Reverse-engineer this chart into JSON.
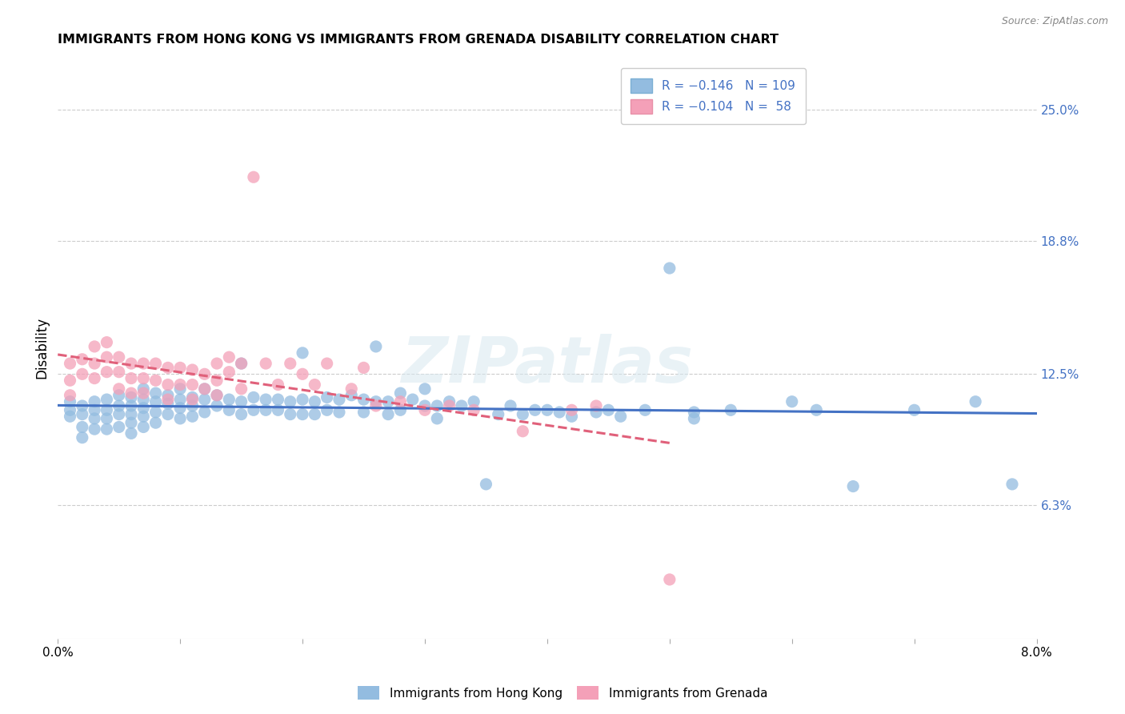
{
  "title": "IMMIGRANTS FROM HONG KONG VS IMMIGRANTS FROM GRENADA DISABILITY CORRELATION CHART",
  "source": "Source: ZipAtlas.com",
  "ylabel": "Disability",
  "ytick_labels": [
    "25.0%",
    "18.8%",
    "12.5%",
    "6.3%"
  ],
  "ytick_values": [
    0.25,
    0.188,
    0.125,
    0.063
  ],
  "x_range": [
    0.0,
    0.08
  ],
  "y_range": [
    0.0,
    0.275
  ],
  "legend_bottom": [
    "Immigrants from Hong Kong",
    "Immigrants from Grenada"
  ],
  "hk_color": "#93bce0",
  "gr_color": "#f4a0b8",
  "hk_line_color": "#4472c4",
  "gr_line_color": "#e0607a",
  "watermark": "ZIPatlas",
  "hk_scatter_x": [
    0.001,
    0.001,
    0.001,
    0.002,
    0.002,
    0.002,
    0.002,
    0.003,
    0.003,
    0.003,
    0.003,
    0.004,
    0.004,
    0.004,
    0.004,
    0.005,
    0.005,
    0.005,
    0.005,
    0.006,
    0.006,
    0.006,
    0.006,
    0.006,
    0.007,
    0.007,
    0.007,
    0.007,
    0.007,
    0.008,
    0.008,
    0.008,
    0.008,
    0.009,
    0.009,
    0.009,
    0.01,
    0.01,
    0.01,
    0.01,
    0.011,
    0.011,
    0.011,
    0.012,
    0.012,
    0.012,
    0.013,
    0.013,
    0.014,
    0.014,
    0.015,
    0.015,
    0.015,
    0.016,
    0.016,
    0.017,
    0.017,
    0.018,
    0.018,
    0.019,
    0.019,
    0.02,
    0.02,
    0.02,
    0.021,
    0.021,
    0.022,
    0.022,
    0.023,
    0.023,
    0.024,
    0.025,
    0.025,
    0.026,
    0.026,
    0.027,
    0.027,
    0.028,
    0.028,
    0.029,
    0.03,
    0.03,
    0.031,
    0.031,
    0.032,
    0.033,
    0.034,
    0.035,
    0.036,
    0.037,
    0.038,
    0.039,
    0.04,
    0.041,
    0.042,
    0.044,
    0.045,
    0.046,
    0.048,
    0.05,
    0.052,
    0.052,
    0.055,
    0.06,
    0.062,
    0.065,
    0.07,
    0.075,
    0.078
  ],
  "hk_scatter_y": [
    0.108,
    0.112,
    0.105,
    0.11,
    0.106,
    0.1,
    0.095,
    0.112,
    0.108,
    0.104,
    0.099,
    0.113,
    0.108,
    0.104,
    0.099,
    0.115,
    0.11,
    0.106,
    0.1,
    0.114,
    0.11,
    0.106,
    0.102,
    0.097,
    0.118,
    0.113,
    0.109,
    0.105,
    0.1,
    0.116,
    0.112,
    0.107,
    0.102,
    0.115,
    0.111,
    0.106,
    0.118,
    0.113,
    0.109,
    0.104,
    0.114,
    0.11,
    0.105,
    0.118,
    0.113,
    0.107,
    0.115,
    0.11,
    0.113,
    0.108,
    0.13,
    0.112,
    0.106,
    0.114,
    0.108,
    0.113,
    0.108,
    0.113,
    0.108,
    0.112,
    0.106,
    0.135,
    0.113,
    0.106,
    0.112,
    0.106,
    0.114,
    0.108,
    0.113,
    0.107,
    0.115,
    0.113,
    0.107,
    0.138,
    0.112,
    0.112,
    0.106,
    0.116,
    0.108,
    0.113,
    0.118,
    0.11,
    0.11,
    0.104,
    0.112,
    0.11,
    0.112,
    0.073,
    0.106,
    0.11,
    0.106,
    0.108,
    0.108,
    0.107,
    0.105,
    0.107,
    0.108,
    0.105,
    0.108,
    0.175,
    0.107,
    0.104,
    0.108,
    0.112,
    0.108,
    0.072,
    0.108,
    0.112,
    0.073
  ],
  "gr_scatter_x": [
    0.001,
    0.001,
    0.001,
    0.002,
    0.002,
    0.003,
    0.003,
    0.003,
    0.004,
    0.004,
    0.004,
    0.005,
    0.005,
    0.005,
    0.006,
    0.006,
    0.006,
    0.007,
    0.007,
    0.007,
    0.008,
    0.008,
    0.009,
    0.009,
    0.009,
    0.01,
    0.01,
    0.011,
    0.011,
    0.011,
    0.012,
    0.012,
    0.013,
    0.013,
    0.013,
    0.014,
    0.014,
    0.015,
    0.015,
    0.016,
    0.017,
    0.018,
    0.019,
    0.02,
    0.021,
    0.022,
    0.024,
    0.025,
    0.026,
    0.028,
    0.03,
    0.032,
    0.034,
    0.038,
    0.042,
    0.044,
    0.05
  ],
  "gr_scatter_y": [
    0.13,
    0.122,
    0.115,
    0.132,
    0.125,
    0.138,
    0.13,
    0.123,
    0.14,
    0.133,
    0.126,
    0.133,
    0.126,
    0.118,
    0.13,
    0.123,
    0.116,
    0.13,
    0.123,
    0.116,
    0.13,
    0.122,
    0.128,
    0.12,
    0.113,
    0.128,
    0.12,
    0.127,
    0.12,
    0.113,
    0.125,
    0.118,
    0.13,
    0.122,
    0.115,
    0.133,
    0.126,
    0.13,
    0.118,
    0.218,
    0.13,
    0.12,
    0.13,
    0.125,
    0.12,
    0.13,
    0.118,
    0.128,
    0.11,
    0.112,
    0.108,
    0.11,
    0.108,
    0.098,
    0.108,
    0.11,
    0.028
  ]
}
